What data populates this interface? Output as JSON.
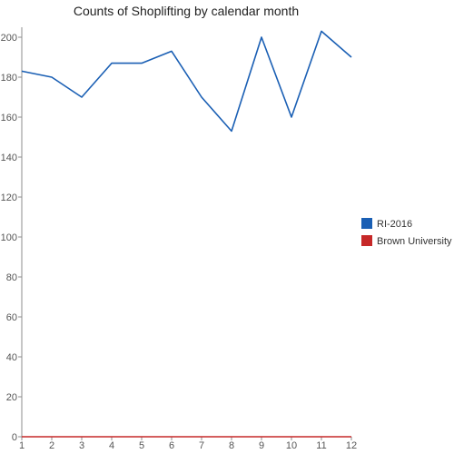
{
  "chart_data": {
    "type": "line",
    "title": "Counts of Shoplifting by calendar month",
    "xlabel": "",
    "ylabel": "",
    "x": [
      1,
      2,
      3,
      4,
      5,
      6,
      7,
      8,
      9,
      10,
      11,
      12
    ],
    "x_tick_labels": [
      "1",
      "2",
      "3",
      "4",
      "5",
      "6",
      "7",
      "8",
      "9",
      "10",
      "11",
      "12"
    ],
    "y_ticks": [
      0,
      20,
      40,
      60,
      80,
      100,
      120,
      140,
      160,
      180,
      200
    ],
    "y_tick_labels": [
      "0",
      "20",
      "40",
      "60",
      "80",
      "100",
      "120",
      "140",
      "160",
      "180",
      "200"
    ],
    "xlim": [
      1,
      12
    ],
    "ylim": [
      0,
      205
    ],
    "grid": false,
    "legend_position": "right",
    "series": [
      {
        "name": "RI-2016",
        "color": "#1a5fb4",
        "values": [
          183,
          180,
          170,
          187,
          187,
          193,
          170,
          153,
          200,
          160,
          203,
          190
        ]
      },
      {
        "name": "Brown University",
        "color": "#c62828",
        "values": [
          0,
          0,
          0,
          0,
          0,
          0,
          0,
          0,
          0,
          0,
          0,
          0
        ]
      }
    ]
  }
}
